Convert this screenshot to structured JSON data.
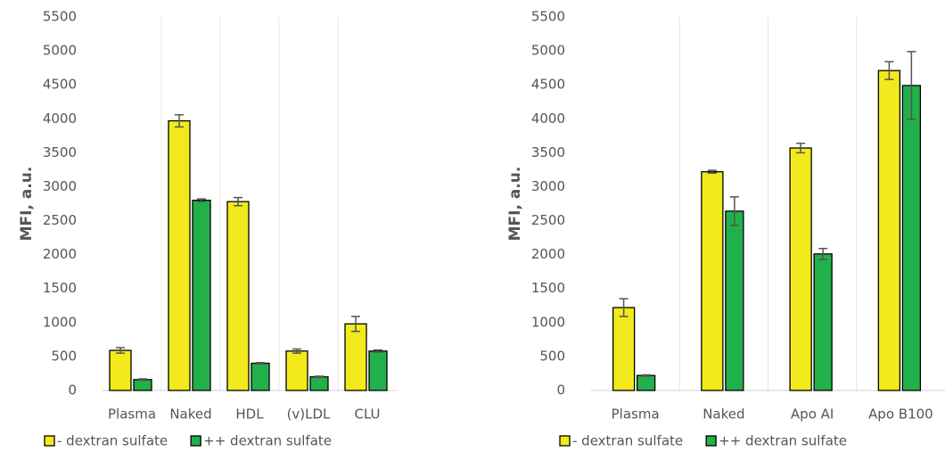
{
  "chart_data": [
    {
      "type": "bar",
      "ylabel": "MFI, a.u.",
      "categories": [
        "Plasma",
        "Naked",
        "HDL",
        "(v)LDL",
        "CLU"
      ],
      "series": [
        {
          "name": "- dextran sulfate",
          "color": "#f2ea1c",
          "values": [
            590,
            3970,
            2780,
            580,
            980
          ],
          "errors": [
            40,
            90,
            60,
            30,
            110
          ]
        },
        {
          "name": "++ dextran sulfate",
          "color": "#22b04b",
          "values": [
            160,
            2800,
            400,
            200,
            580
          ],
          "errors": [
            10,
            20,
            10,
            10,
            15
          ]
        }
      ],
      "ylim": [
        0,
        5500
      ],
      "yticks": [
        0,
        500,
        1000,
        1500,
        2000,
        2500,
        3000,
        3500,
        4000,
        4500,
        5000,
        5500
      ]
    },
    {
      "type": "bar",
      "ylabel": "MFI, a.u.",
      "categories": [
        "Plasma",
        "Naked",
        "Apo AI",
        "Apo B100"
      ],
      "series": [
        {
          "name": "- dextran sulfate",
          "color": "#f2ea1c",
          "values": [
            1220,
            3220,
            3570,
            4710
          ],
          "errors": [
            130,
            20,
            70,
            130
          ]
        },
        {
          "name": "++ dextran sulfate",
          "color": "#22b04b",
          "values": [
            220,
            2640,
            2010,
            4490
          ],
          "errors": [
            10,
            210,
            80,
            500
          ]
        }
      ],
      "ylim": [
        0,
        5500
      ],
      "yticks": [
        0,
        500,
        1000,
        1500,
        2000,
        2500,
        3000,
        3500,
        4000,
        4500,
        5000,
        5500
      ]
    }
  ]
}
